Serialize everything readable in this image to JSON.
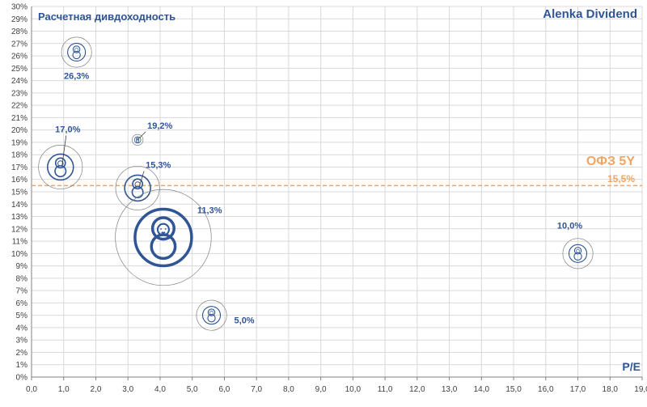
{
  "chart_data": {
    "type": "scatter",
    "title": "Расчетная  дивдоходность",
    "watermark": "Alenka Dividend",
    "xlabel": "P/E",
    "ylabel": "",
    "xlim": [
      0,
      19
    ],
    "ylim": [
      0,
      30
    ],
    "x_ticks": [
      "0,0",
      "1,0",
      "2,0",
      "3,0",
      "4,0",
      "5,0",
      "6,0",
      "7,0",
      "8,0",
      "9,0",
      "10,0",
      "11,0",
      "12,0",
      "13,0",
      "14,0",
      "15,0",
      "16,0",
      "17,0",
      "18,0",
      "19,0"
    ],
    "y_ticks": [
      "0%",
      "1%",
      "2%",
      "3%",
      "4%",
      "5%",
      "6%",
      "7%",
      "8%",
      "9%",
      "10%",
      "11%",
      "12%",
      "13%",
      "14%",
      "15%",
      "16%",
      "17%",
      "18%",
      "19%",
      "20%",
      "21%",
      "22%",
      "23%",
      "24%",
      "25%",
      "26%",
      "27%",
      "28%",
      "29%",
      "30%"
    ],
    "grid": true,
    "points": [
      {
        "x": 1.4,
        "y": 26.3,
        "label": "26,3%",
        "size": "small"
      },
      {
        "x": 3.3,
        "y": 19.2,
        "label": "19,2%",
        "size": "tiny"
      },
      {
        "x": 0.9,
        "y": 17.0,
        "label": "17,0%",
        "size": "medium"
      },
      {
        "x": 3.3,
        "y": 15.3,
        "label": "15,3%",
        "size": "medium"
      },
      {
        "x": 4.1,
        "y": 11.3,
        "label": "11,3%",
        "size": "large"
      },
      {
        "x": 17.0,
        "y": 10.0,
        "label": "10,0%",
        "size": "small"
      },
      {
        "x": 5.6,
        "y": 5.0,
        "label": "5,0%",
        "size": "small"
      }
    ],
    "reference_line": {
      "y": 15.5,
      "name": "ОФЗ 5Y",
      "label": "15,5%",
      "style": "dashed"
    },
    "colors": {
      "marker": "#2f5597",
      "reference": "#f4a460",
      "grid": "#d9d9d9",
      "text": "#2f5597",
      "axis": "#404040"
    }
  }
}
